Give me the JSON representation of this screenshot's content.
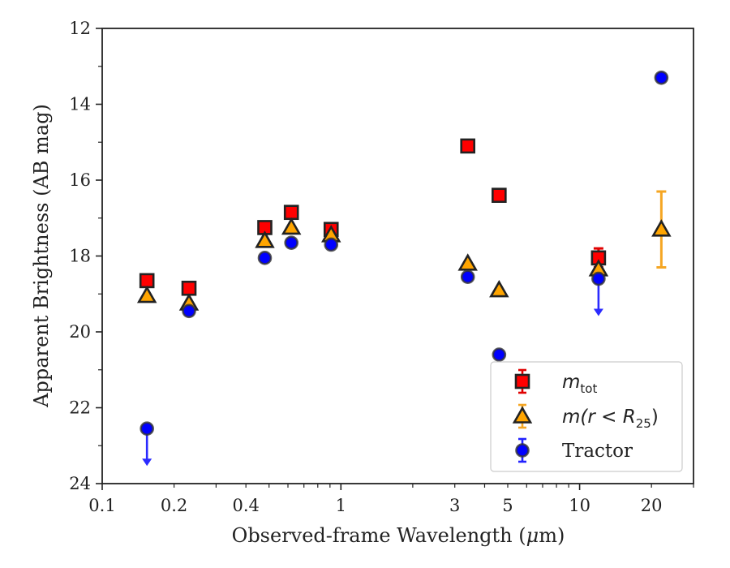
{
  "chart_data": {
    "type": "scatter",
    "xscale": "log",
    "yinverted": true,
    "xlim": [
      0.1,
      30
    ],
    "ylim": [
      24,
      12
    ],
    "xlabel_pre": "Observed-frame Wavelength (",
    "xlabel_mu": "μ",
    "xlabel_post": "m)",
    "ylabel": "Apparent Brightness (AB mag)",
    "xticks": [
      {
        "value": 0.1,
        "label": "0.1"
      },
      {
        "value": 0.2,
        "label": "0.2"
      },
      {
        "value": 0.4,
        "label": "0.4"
      },
      {
        "value": 1,
        "label": "1"
      },
      {
        "value": 3,
        "label": "3"
      },
      {
        "value": 5,
        "label": "5"
      },
      {
        "value": 10,
        "label": "10"
      },
      {
        "value": 20,
        "label": "20"
      }
    ],
    "yticks": [
      {
        "value": 12,
        "label": "12"
      },
      {
        "value": 14,
        "label": "14"
      },
      {
        "value": 16,
        "label": "16"
      },
      {
        "value": 18,
        "label": "18"
      },
      {
        "value": 20,
        "label": "20"
      },
      {
        "value": 22,
        "label": "22"
      },
      {
        "value": 24,
        "label": "24"
      }
    ],
    "legend_position": "lower-right",
    "series": [
      {
        "name": "m_tot",
        "legend_main": "m",
        "legend_sub": "tot",
        "marker": "square",
        "color": "#ff0000",
        "errcolor": "#e00000",
        "points": [
          {
            "x": 0.154,
            "y": 18.65
          },
          {
            "x": 0.231,
            "y": 18.85
          },
          {
            "x": 0.48,
            "y": 17.25
          },
          {
            "x": 0.62,
            "y": 16.85
          },
          {
            "x": 0.91,
            "y": 17.3
          },
          {
            "x": 3.4,
            "y": 15.1
          },
          {
            "x": 4.6,
            "y": 16.4
          },
          {
            "x": 12.0,
            "y": 18.05,
            "yerr": 0.25
          }
        ]
      },
      {
        "name": "m(r < R25)",
        "legend_main": "m(r < R",
        "legend_sub": "25",
        "legend_close": ")",
        "marker": "triangle",
        "color": "#ffa500",
        "errcolor": "#f5a623",
        "points": [
          {
            "x": 0.154,
            "y": 19.05
          },
          {
            "x": 0.231,
            "y": 19.25
          },
          {
            "x": 0.48,
            "y": 17.6
          },
          {
            "x": 0.62,
            "y": 17.25
          },
          {
            "x": 0.91,
            "y": 17.45
          },
          {
            "x": 3.4,
            "y": 18.2
          },
          {
            "x": 4.6,
            "y": 18.9
          },
          {
            "x": 12.0,
            "y": 18.35
          },
          {
            "x": 22.0,
            "y": 17.3,
            "yerr": 1.0
          }
        ]
      },
      {
        "name": "Tractor",
        "legend_main": "Tractor",
        "marker": "circle",
        "color": "#0000ff",
        "errcolor": "#2222ff",
        "points": [
          {
            "x": 0.154,
            "y": 22.55,
            "upper_limit": true
          },
          {
            "x": 0.231,
            "y": 19.45
          },
          {
            "x": 0.48,
            "y": 18.05
          },
          {
            "x": 0.62,
            "y": 17.65
          },
          {
            "x": 0.91,
            "y": 17.7
          },
          {
            "x": 3.4,
            "y": 18.55
          },
          {
            "x": 4.6,
            "y": 20.6
          },
          {
            "x": 12.0,
            "y": 18.6,
            "upper_limit": true
          },
          {
            "x": 22.0,
            "y": 13.3
          }
        ]
      }
    ]
  }
}
